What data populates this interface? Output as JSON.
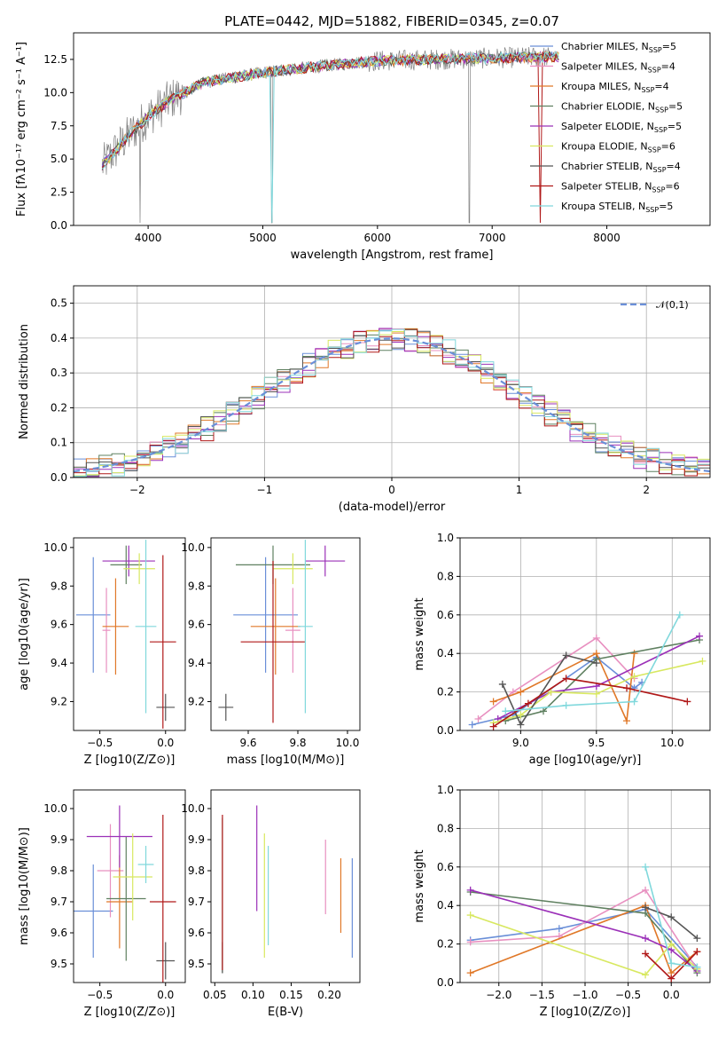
{
  "page": {
    "title": "PLATE=0442, MJD=51882, FIBERID=0345, z=0.07"
  },
  "colors": {
    "series": [
      "#6a8fd8",
      "#e890c0",
      "#e07828",
      "#5f8060",
      "#9b30b8",
      "#d8e860",
      "#555555",
      "#b01818",
      "#80d8dc"
    ],
    "spectrum": "#808080"
  },
  "chart_data": [
    {
      "id": "spectrum",
      "type": "line",
      "title": "PLATE=0442, MJD=51882, FIBERID=0345, z=0.07",
      "xlabel": "wavelength [Angstrom, rest frame]",
      "ylabel": "Flux [fλ10⁻¹⁷ erg cm⁻² s⁻¹ A⁻¹]",
      "xlim": [
        3350,
        8900
      ],
      "ylim": [
        0,
        14.5
      ],
      "xticks": [
        4000,
        5000,
        6000,
        7000,
        8000
      ],
      "yticks": [
        0.0,
        2.5,
        5.0,
        7.5,
        10.0,
        12.5
      ],
      "legend_position": "upper-right",
      "continuum": {
        "x": [
          3600,
          3800,
          4000,
          4200,
          4500,
          5000,
          5500,
          6000,
          6500,
          7000,
          7500,
          8300
        ],
        "y": [
          4.5,
          6.5,
          8.2,
          9.5,
          10.8,
          11.5,
          12.0,
          12.4,
          12.5,
          12.6,
          12.7,
          12.8
        ]
      },
      "series": [
        {
          "name": "Chabrier MILES, N_SSP=5",
          "n": "5",
          "label": "Chabrier MILES"
        },
        {
          "name": "Salpeter MILES, N_SSP=4",
          "n": "4",
          "label": "Salpeter MILES"
        },
        {
          "name": "Kroupa MILES, N_SSP=4",
          "n": "4",
          "label": "Kroupa MILES"
        },
        {
          "name": "Chabrier ELODIE, N_SSP=5",
          "n": "5",
          "label": "Chabrier ELODIE"
        },
        {
          "name": "Salpeter ELODIE, N_SSP=5",
          "n": "5",
          "label": "Salpeter ELODIE"
        },
        {
          "name": "Kroupa ELODIE, N_SSP=6",
          "n": "6",
          "label": "Kroupa ELODIE"
        },
        {
          "name": "Chabrier STELIB, N_SSP=4",
          "n": "4",
          "label": "Chabrier STELIB"
        },
        {
          "name": "Salpeter STELIB, N_SSP=6",
          "n": "6",
          "label": "Salpeter STELIB"
        },
        {
          "name": "Kroupa STELIB, N_SSP=5",
          "n": "5",
          "label": "Kroupa STELIB"
        }
      ]
    },
    {
      "id": "residuals",
      "type": "histogram",
      "xlabel": "(data-model)/error",
      "ylabel": "Normed distribution",
      "xlim": [
        -2.5,
        2.5
      ],
      "ylim": [
        0,
        0.55
      ],
      "xticks": [
        -2,
        -1,
        0,
        1,
        2
      ],
      "yticks": [
        0.0,
        0.1,
        0.2,
        0.3,
        0.4,
        0.5
      ],
      "grid": true,
      "reference_curve": {
        "name": "𝒩(0,1)",
        "mean": 0,
        "sigma": 1
      },
      "legend_position": "upper-right"
    },
    {
      "id": "age-vs-Z",
      "type": "errorbar",
      "xlabel": "Z [log10(Z/Z⊙)]",
      "ylabel": "age [log10(age/yr)]",
      "xlim": [
        -0.7,
        0.15
      ],
      "ylim": [
        9.05,
        10.05
      ],
      "xticks": [
        -0.5,
        0.0
      ],
      "yticks": [
        9.2,
        9.4,
        9.6,
        9.8,
        10.0
      ],
      "points": [
        {
          "x": -0.55,
          "xerr": 0.13,
          "y": 9.65,
          "yerr": 0.3
        },
        {
          "x": -0.45,
          "xerr": 0.03,
          "y": 9.57,
          "yerr": 0.22
        },
        {
          "x": -0.38,
          "xerr": 0.1,
          "y": 9.59,
          "yerr": 0.25
        },
        {
          "x": -0.3,
          "xerr": 0.12,
          "y": 9.91,
          "yerr": 0.1
        },
        {
          "x": -0.28,
          "xerr": 0.2,
          "y": 9.93,
          "yerr": 0.08
        },
        {
          "x": -0.2,
          "xerr": 0.12,
          "y": 9.89,
          "yerr": 0.08
        },
        {
          "x": 0.0,
          "xerr": 0.07,
          "y": 9.17,
          "yerr": 0.07
        },
        {
          "x": -0.02,
          "xerr": 0.1,
          "y": 9.51,
          "yerr": 0.45
        },
        {
          "x": -0.15,
          "xerr": 0.08,
          "y": 9.59,
          "yerr": 0.45
        }
      ]
    },
    {
      "id": "age-vs-mass",
      "type": "errorbar",
      "xlabel": "mass [log10(M/M⊙)]",
      "ylabel": "",
      "xlim": [
        9.45,
        10.05
      ],
      "ylim": [
        9.05,
        10.05
      ],
      "xticks": [
        9.6,
        9.8,
        10.0
      ],
      "yticks": [
        9.2,
        9.4,
        9.6,
        9.8,
        10.0
      ],
      "points": [
        {
          "x": 9.67,
          "xerr": 0.13,
          "y": 9.65,
          "yerr": 0.3
        },
        {
          "x": 9.78,
          "xerr": 0.03,
          "y": 9.57,
          "yerr": 0.22
        },
        {
          "x": 9.71,
          "xerr": 0.1,
          "y": 9.59,
          "yerr": 0.25
        },
        {
          "x": 9.7,
          "xerr": 0.15,
          "y": 9.91,
          "yerr": 0.1
        },
        {
          "x": 9.91,
          "xerr": 0.08,
          "y": 9.93,
          "yerr": 0.08
        },
        {
          "x": 9.78,
          "xerr": 0.08,
          "y": 9.89,
          "yerr": 0.08
        },
        {
          "x": 9.51,
          "xerr": 0.03,
          "y": 9.17,
          "yerr": 0.07
        },
        {
          "x": 9.7,
          "xerr": 0.13,
          "y": 9.51,
          "yerr": 0.42
        },
        {
          "x": 9.83,
          "xerr": 0.03,
          "y": 9.59,
          "yerr": 0.45
        }
      ]
    },
    {
      "id": "weight-vs-age",
      "type": "line",
      "xlabel": "age [log10(age/yr)]",
      "ylabel": "mass weight",
      "xlim": [
        8.6,
        10.25
      ],
      "ylim": [
        0,
        1.0
      ],
      "xticks": [
        9.0,
        9.5,
        10.0
      ],
      "yticks": [
        0.0,
        0.2,
        0.4,
        0.6,
        0.8,
        1.0
      ],
      "grid": true,
      "series": [
        {
          "x": [
            8.68,
            8.95,
            9.5,
            9.75,
            9.8
          ],
          "y": [
            0.03,
            0.08,
            0.38,
            0.22,
            0.25
          ]
        },
        {
          "x": [
            8.72,
            8.95,
            9.5,
            9.75
          ],
          "y": [
            0.06,
            0.2,
            0.48,
            0.27
          ]
        },
        {
          "x": [
            8.82,
            9.0,
            9.5,
            9.7,
            9.75
          ],
          "y": [
            0.15,
            0.2,
            0.4,
            0.05,
            0.4
          ]
        },
        {
          "x": [
            8.9,
            9.15,
            9.5,
            10.18
          ],
          "y": [
            0.05,
            0.1,
            0.37,
            0.47
          ]
        },
        {
          "x": [
            8.85,
            9.2,
            9.5,
            10.18
          ],
          "y": [
            0.06,
            0.2,
            0.23,
            0.49
          ]
        },
        {
          "x": [
            8.82,
            9.0,
            9.2,
            9.5,
            9.75,
            10.2
          ],
          "y": [
            0.04,
            0.08,
            0.2,
            0.19,
            0.28,
            0.36
          ]
        },
        {
          "x": [
            8.88,
            9.0,
            9.3,
            9.5
          ],
          "y": [
            0.24,
            0.03,
            0.39,
            0.35
          ]
        },
        {
          "x": [
            8.82,
            9.05,
            9.3,
            9.7,
            10.1
          ],
          "y": [
            0.02,
            0.14,
            0.27,
            0.22,
            0.15
          ]
        },
        {
          "x": [
            8.9,
            9.3,
            9.75,
            10.05
          ],
          "y": [
            0.1,
            0.13,
            0.15,
            0.6
          ]
        }
      ]
    },
    {
      "id": "mass-vs-Z",
      "type": "errorbar",
      "xlabel": "Z [log10(Z/Z⊙)]",
      "ylabel": "mass [log10(M/M⊙)]",
      "xlim": [
        -0.7,
        0.15
      ],
      "ylim": [
        9.44,
        10.06
      ],
      "xticks": [
        -0.5,
        0.0
      ],
      "yticks": [
        9.5,
        9.6,
        9.7,
        9.8,
        9.9,
        10.0
      ],
      "points": [
        {
          "x": -0.55,
          "xerr": 0.15,
          "y": 9.67,
          "yerr": 0.15
        },
        {
          "x": -0.42,
          "xerr": 0.1,
          "y": 9.8,
          "yerr": 0.15
        },
        {
          "x": -0.35,
          "xerr": 0.1,
          "y": 9.7,
          "yerr": 0.15
        },
        {
          "x": -0.3,
          "xerr": 0.15,
          "y": 9.71,
          "yerr": 0.2
        },
        {
          "x": -0.35,
          "xerr": 0.25,
          "y": 9.91,
          "yerr": 0.1
        },
        {
          "x": -0.25,
          "xerr": 0.15,
          "y": 9.78,
          "yerr": 0.14
        },
        {
          "x": 0.0,
          "xerr": 0.07,
          "y": 9.51,
          "yerr": 0.06
        },
        {
          "x": -0.02,
          "xerr": 0.1,
          "y": 9.7,
          "yerr": 0.28
        },
        {
          "x": -0.15,
          "xerr": 0.06,
          "y": 9.82,
          "yerr": 0.06
        }
      ]
    },
    {
      "id": "mass-vs-ebv",
      "type": "errorbar",
      "xlabel": "E(B-V)",
      "ylabel": "",
      "xlim": [
        0.045,
        0.24
      ],
      "ylim": [
        9.44,
        10.06
      ],
      "xticks": [
        0.05,
        0.1,
        0.15,
        0.2
      ],
      "yticks": [
        9.5,
        9.6,
        9.7,
        9.8,
        9.9,
        10.0
      ],
      "points": [
        {
          "x": 0.23,
          "y": 9.68,
          "yerr": 0.16
        },
        {
          "x": 0.195,
          "y": 9.78,
          "yerr": 0.12
        },
        {
          "x": 0.215,
          "y": 9.72,
          "yerr": 0.12
        },
        {
          "x": 0.06,
          "y": 9.72,
          "yerr": 0.25
        },
        {
          "x": 0.105,
          "y": 9.84,
          "yerr": 0.17
        },
        {
          "x": 0.115,
          "y": 9.72,
          "yerr": 0.2
        },
        {
          "x": 0.06,
          "y": 9.52,
          "yerr": 0.05
        },
        {
          "x": 0.06,
          "y": 9.73,
          "yerr": 0.25
        },
        {
          "x": 0.12,
          "y": 9.72,
          "yerr": 0.16
        }
      ]
    },
    {
      "id": "weight-vs-Z",
      "type": "line",
      "xlabel": "Z [log10(Z/Z⊙)]",
      "ylabel": "mass weight",
      "xlim": [
        -2.45,
        0.45
      ],
      "ylim": [
        0,
        1.0
      ],
      "xticks": [
        -2.0,
        -1.5,
        -1.0,
        -0.5,
        0.0
      ],
      "yticks": [
        0.0,
        0.2,
        0.4,
        0.6,
        0.8,
        1.0
      ],
      "grid": true,
      "series": [
        {
          "x": [
            -2.33,
            -1.3,
            -0.3,
            0.3
          ],
          "y": [
            0.22,
            0.28,
            0.38,
            0.08
          ]
        },
        {
          "x": [
            -2.33,
            -1.3,
            -0.3,
            0.3
          ],
          "y": [
            0.21,
            0.24,
            0.48,
            0.07
          ]
        },
        {
          "x": [
            -2.33,
            -0.3,
            0.0,
            0.3
          ],
          "y": [
            0.05,
            0.4,
            0.05,
            0.16
          ]
        },
        {
          "x": [
            -2.33,
            -0.3,
            0.3
          ],
          "y": [
            0.47,
            0.36,
            0.05
          ]
        },
        {
          "x": [
            -2.33,
            -0.3,
            0.0,
            0.3
          ],
          "y": [
            0.48,
            0.23,
            0.17,
            0.06
          ]
        },
        {
          "x": [
            -2.33,
            -0.3,
            0.0,
            0.3
          ],
          "y": [
            0.35,
            0.04,
            0.2,
            0.07
          ]
        },
        {
          "x": [
            -0.3,
            0.0,
            0.3
          ],
          "y": [
            0.39,
            0.34,
            0.23
          ]
        },
        {
          "x": [
            -0.3,
            0.0,
            0.3
          ],
          "y": [
            0.15,
            0.02,
            0.16
          ]
        },
        {
          "x": [
            -0.3,
            0.0,
            0.3
          ],
          "y": [
            0.6,
            0.1,
            0.08
          ]
        }
      ]
    }
  ]
}
